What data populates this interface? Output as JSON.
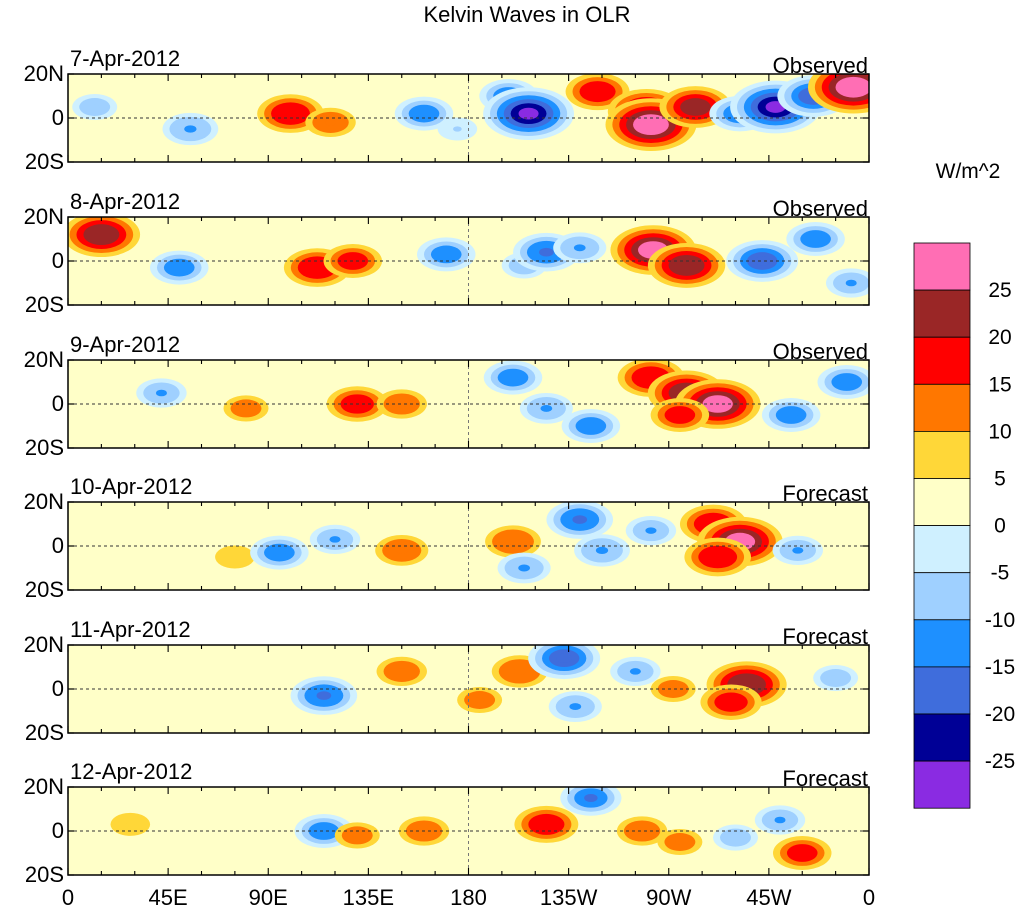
{
  "chart_data": {
    "type": "heatmap",
    "title": "Kelvin Waves in OLR",
    "units": "W/m^2",
    "xlabel": "",
    "ylabel": "",
    "x_tick_labels": [
      "0",
      "45E",
      "90E",
      "135E",
      "180",
      "135W",
      "90W",
      "45W",
      "0"
    ],
    "x_tick_values_deg": [
      0,
      45,
      90,
      135,
      180,
      225,
      270,
      315,
      360
    ],
    "xlim_deg": [
      0,
      360
    ],
    "y_tick_labels": [
      "20N",
      "0",
      "20S"
    ],
    "y_tick_values_deg": [
      20,
      0,
      -20
    ],
    "ylim_deg": [
      -20,
      20
    ],
    "colorbar": {
      "labels": [
        "25",
        "20",
        "15",
        "10",
        "5",
        "0",
        "-5",
        "-10",
        "-15",
        "-20",
        "-25"
      ],
      "levels": [
        25,
        20,
        15,
        10,
        5,
        0,
        -5,
        -10,
        -15,
        -20,
        -25
      ],
      "colors": [
        "#ff6eb4",
        "#9a2626",
        "#ff0000",
        "#ff7700",
        "#ffd738",
        "#ffffc8",
        "#cff0ff",
        "#9fd0ff",
        "#1e90ff",
        "#3f6ddc",
        "#000096",
        "#8a2be2"
      ]
    },
    "panels": [
      {
        "date": "7-Apr-2012",
        "label": "Observed",
        "anomalies": [
          {
            "lon": 100,
            "lat": 2,
            "value": 18
          },
          {
            "lon": 118,
            "lat": -2,
            "value": 12
          },
          {
            "lon": 160,
            "lat": 2,
            "value": -15
          },
          {
            "lon": 175,
            "lat": -5,
            "value": -8
          },
          {
            "lon": 198,
            "lat": 10,
            "value": -15
          },
          {
            "lon": 207,
            "lat": 2,
            "value": -27
          },
          {
            "lon": 238,
            "lat": 12,
            "value": 17
          },
          {
            "lon": 260,
            "lat": 3,
            "value": 22
          },
          {
            "lon": 262,
            "lat": -3,
            "value": 27
          },
          {
            "lon": 282,
            "lat": 5,
            "value": 20
          },
          {
            "lon": 302,
            "lat": 2,
            "value": -16
          },
          {
            "lon": 318,
            "lat": 5,
            "value": -27
          },
          {
            "lon": 335,
            "lat": 10,
            "value": -20
          },
          {
            "lon": 353,
            "lat": 14,
            "value": 27
          },
          {
            "lon": 55,
            "lat": -5,
            "value": -14
          },
          {
            "lon": 12,
            "lat": 5,
            "value": -10
          }
        ]
      },
      {
        "date": "8-Apr-2012",
        "label": "Observed",
        "anomalies": [
          {
            "lon": 15,
            "lat": 12,
            "value": 22
          },
          {
            "lon": 50,
            "lat": -3,
            "value": -15
          },
          {
            "lon": 112,
            "lat": -3,
            "value": 18
          },
          {
            "lon": 128,
            "lat": 0,
            "value": 15
          },
          {
            "lon": 170,
            "lat": 3,
            "value": -15
          },
          {
            "lon": 205,
            "lat": -2,
            "value": -10
          },
          {
            "lon": 215,
            "lat": 4,
            "value": -18
          },
          {
            "lon": 230,
            "lat": 6,
            "value": -13
          },
          {
            "lon": 263,
            "lat": 5,
            "value": 25
          },
          {
            "lon": 278,
            "lat": -2,
            "value": 22
          },
          {
            "lon": 312,
            "lat": 0,
            "value": -20
          },
          {
            "lon": 336,
            "lat": 10,
            "value": -15
          },
          {
            "lon": 352,
            "lat": -10,
            "value": -12
          }
        ]
      },
      {
        "date": "9-Apr-2012",
        "label": "Observed",
        "anomalies": [
          {
            "lon": 42,
            "lat": 5,
            "value": -12
          },
          {
            "lon": 80,
            "lat": -2,
            "value": 10
          },
          {
            "lon": 130,
            "lat": 0,
            "value": 16
          },
          {
            "lon": 150,
            "lat": 0,
            "value": 12
          },
          {
            "lon": 200,
            "lat": 12,
            "value": -15
          },
          {
            "lon": 215,
            "lat": -2,
            "value": -13
          },
          {
            "lon": 235,
            "lat": -10,
            "value": -15
          },
          {
            "lon": 262,
            "lat": 12,
            "value": 18
          },
          {
            "lon": 278,
            "lat": 5,
            "value": 22
          },
          {
            "lon": 292,
            "lat": 0,
            "value": 25
          },
          {
            "lon": 275,
            "lat": -5,
            "value": 15
          },
          {
            "lon": 325,
            "lat": -5,
            "value": -15
          },
          {
            "lon": 350,
            "lat": 10,
            "value": -15
          }
        ]
      },
      {
        "date": "10-Apr-2012",
        "label": "Forecast",
        "anomalies": [
          {
            "lon": 75,
            "lat": -5,
            "value": 8
          },
          {
            "lon": 95,
            "lat": -3,
            "value": -15
          },
          {
            "lon": 120,
            "lat": 3,
            "value": -12
          },
          {
            "lon": 150,
            "lat": -2,
            "value": 13
          },
          {
            "lon": 200,
            "lat": 2,
            "value": 14
          },
          {
            "lon": 205,
            "lat": -10,
            "value": -13
          },
          {
            "lon": 230,
            "lat": 12,
            "value": -18
          },
          {
            "lon": 240,
            "lat": -2,
            "value": -14
          },
          {
            "lon": 262,
            "lat": 7,
            "value": -12
          },
          {
            "lon": 290,
            "lat": 10,
            "value": 18
          },
          {
            "lon": 302,
            "lat": 2,
            "value": 25
          },
          {
            "lon": 292,
            "lat": -5,
            "value": 18
          },
          {
            "lon": 328,
            "lat": -2,
            "value": -12
          }
        ]
      },
      {
        "date": "11-Apr-2012",
        "label": "Forecast",
        "anomalies": [
          {
            "lon": 115,
            "lat": -3,
            "value": -18
          },
          {
            "lon": 150,
            "lat": 8,
            "value": 12
          },
          {
            "lon": 185,
            "lat": -5,
            "value": 10
          },
          {
            "lon": 203,
            "lat": 8,
            "value": 14
          },
          {
            "lon": 223,
            "lat": 14,
            "value": -20
          },
          {
            "lon": 228,
            "lat": -8,
            "value": -13
          },
          {
            "lon": 255,
            "lat": 8,
            "value": -12
          },
          {
            "lon": 272,
            "lat": 0,
            "value": 10
          },
          {
            "lon": 305,
            "lat": 2,
            "value": 23
          },
          {
            "lon": 298,
            "lat": -6,
            "value": 16
          },
          {
            "lon": 345,
            "lat": 5,
            "value": -10
          }
        ]
      },
      {
        "date": "12-Apr-2012",
        "label": "Forecast",
        "anomalies": [
          {
            "lon": 115,
            "lat": 0,
            "value": -15
          },
          {
            "lon": 130,
            "lat": -2,
            "value": 10
          },
          {
            "lon": 160,
            "lat": 0,
            "value": 12
          },
          {
            "lon": 215,
            "lat": 3,
            "value": 17
          },
          {
            "lon": 235,
            "lat": 15,
            "value": -16
          },
          {
            "lon": 258,
            "lat": 0,
            "value": 12
          },
          {
            "lon": 275,
            "lat": -5,
            "value": 10
          },
          {
            "lon": 300,
            "lat": -3,
            "value": -10
          },
          {
            "lon": 320,
            "lat": 5,
            "value": -12
          },
          {
            "lon": 330,
            "lat": -10,
            "value": 15
          },
          {
            "lon": 28,
            "lat": 3,
            "value": 8
          }
        ]
      }
    ]
  }
}
